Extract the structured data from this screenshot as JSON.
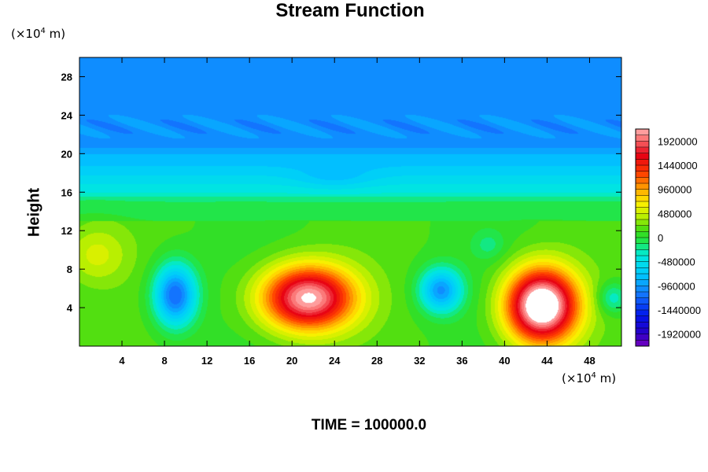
{
  "chart_data": {
    "type": "heatmap",
    "title": "Stream Function",
    "ylabel": "Height",
    "x_unit": {
      "prefix": "(×10",
      "exp": "4",
      "suffix": " m)"
    },
    "y_unit": {
      "prefix": "(×10",
      "exp": "4",
      "suffix": " m)"
    },
    "xlim": [
      0,
      51
    ],
    "ylim": [
      0,
      30
    ],
    "xticks": [
      4,
      8,
      12,
      16,
      20,
      24,
      28,
      32,
      36,
      40,
      44,
      48
    ],
    "yticks": [
      4,
      8,
      12,
      16,
      20,
      24,
      28
    ],
    "colorbar": {
      "range": [
        -2160000,
        2160000
      ],
      "step": 120000,
      "labels": [
        1920000,
        1440000,
        960000,
        480000,
        0,
        -480000,
        -960000,
        -1440000,
        -1920000
      ]
    },
    "features": [
      {
        "kind": "max",
        "x": 21.5,
        "y": 5.0,
        "value": 2000000
      },
      {
        "kind": "max",
        "x": 43.5,
        "y": 4.0,
        "value": 2300000
      },
      {
        "kind": "min",
        "x": 9.0,
        "y": 5.5,
        "value": -1050000
      },
      {
        "kind": "min",
        "x": 34.0,
        "y": 5.8,
        "value": -920000
      }
    ],
    "footer": "TIME = 100000.0"
  }
}
